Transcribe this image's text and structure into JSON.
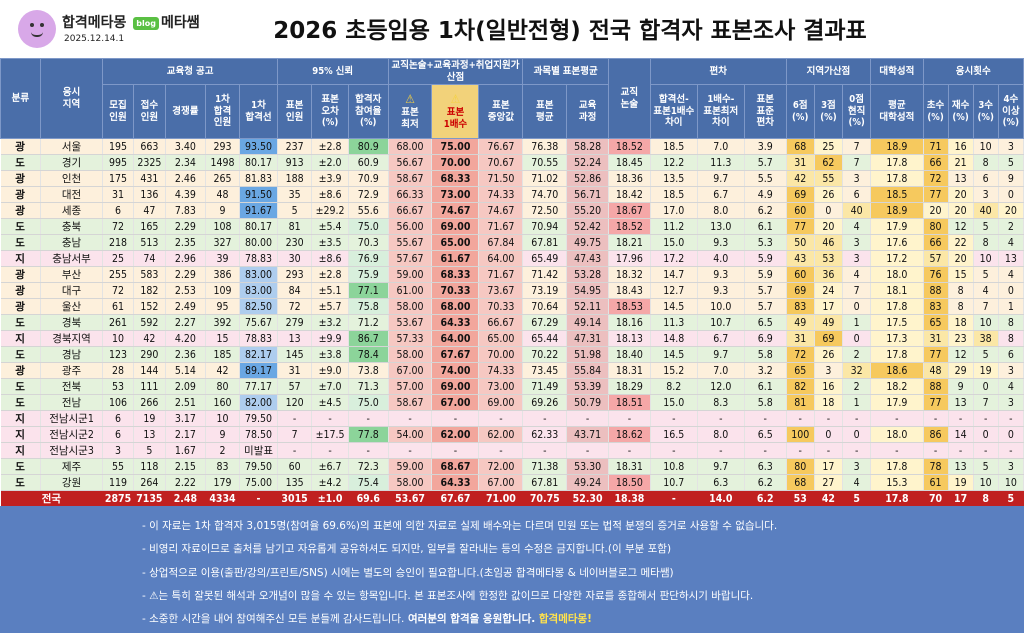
{
  "header": {
    "brand_name": "합격메타몽",
    "brand_badge": "blog",
    "brand_suffix": "메타쌤",
    "date": "2025.12.14.1",
    "title": "2026 초등임용 1차(일반전형) 전국 합격자 표본조사 결과표"
  },
  "colors": {
    "header_blue": "#4a6ea9",
    "total_red": "#c02020",
    "notes_blue": "#5a7fc0",
    "highlight": "#f2d27a"
  },
  "columns": {
    "groups": [
      "교육청 공고",
      "95% 신뢰",
      "교직논술+교육과정+취업지원가산점",
      "과목별 표본평균",
      "편차",
      "지역가산점",
      "대학성적",
      "응시횟수"
    ],
    "sub": [
      "분류",
      "응시\n지역",
      "모집\n인원",
      "접수\n인원",
      "경쟁률",
      "1차\n합격\n인원",
      "1차\n합격선",
      "표본\n인원",
      "표본\n오차\n(%)",
      "합격자\n참여율\n(%)",
      "표본\n최저",
      "표본\n1배수",
      "표본\n중앙값",
      "표본\n평균",
      "교육\n과정",
      "교직\n논술",
      "합격선-\n표본1배수\n차이",
      "1배수-\n표본최저\n차이",
      "표본\n표준\n편차",
      "6점\n(%)",
      "3점\n(%)",
      "0점\n현직\n(%)",
      "평균\n대학성적",
      "초수\n(%)",
      "재수\n(%)",
      "3수\n(%)",
      "4수\n이상\n(%)"
    ]
  },
  "rows": [
    {
      "kind": "광",
      "region": "서울",
      "c": [
        "195",
        "663",
        "3.40",
        "293",
        "93.50",
        "237",
        "±2.8",
        "80.9",
        "68.00",
        "75.00",
        "76.67",
        "76.38",
        "58.28",
        "18.52",
        "18.5",
        "7.0",
        "3.9",
        "68",
        "25",
        "7",
        "18.9",
        "71",
        "16",
        "10",
        "3"
      ]
    },
    {
      "kind": "도",
      "region": "경기",
      "c": [
        "995",
        "2325",
        "2.34",
        "1498",
        "80.17",
        "913",
        "±2.0",
        "60.9",
        "56.67",
        "70.00",
        "70.67",
        "70.55",
        "52.24",
        "18.45",
        "12.2",
        "11.3",
        "5.7",
        "31",
        "62",
        "7",
        "17.8",
        "66",
        "21",
        "8",
        "5"
      ]
    },
    {
      "kind": "광",
      "region": "인천",
      "c": [
        "175",
        "431",
        "2.46",
        "265",
        "81.83",
        "188",
        "±3.9",
        "70.9",
        "58.67",
        "68.33",
        "71.50",
        "71.02",
        "52.86",
        "18.36",
        "13.5",
        "9.7",
        "5.5",
        "42",
        "55",
        "3",
        "17.8",
        "72",
        "13",
        "6",
        "9"
      ]
    },
    {
      "kind": "광",
      "region": "대전",
      "c": [
        "31",
        "136",
        "4.39",
        "48",
        "91.50",
        "35",
        "±8.6",
        "72.9",
        "66.33",
        "73.00",
        "74.33",
        "74.70",
        "56.71",
        "18.42",
        "18.5",
        "6.7",
        "4.9",
        "69",
        "26",
        "6",
        "18.5",
        "77",
        "20",
        "3",
        "0"
      ]
    },
    {
      "kind": "광",
      "region": "세종",
      "c": [
        "6",
        "47",
        "7.83",
        "9",
        "91.67",
        "5",
        "±29.2",
        "55.6",
        "66.67",
        "74.67",
        "74.67",
        "72.50",
        "55.20",
        "18.67",
        "17.0",
        "8.0",
        "6.2",
        "60",
        "0",
        "40",
        "18.9",
        "20",
        "20",
        "40",
        "20"
      ]
    },
    {
      "kind": "도",
      "region": "충북",
      "c": [
        "72",
        "165",
        "2.29",
        "108",
        "80.17",
        "81",
        "±5.4",
        "75.0",
        "56.00",
        "69.00",
        "71.67",
        "70.94",
        "52.42",
        "18.52",
        "11.2",
        "13.0",
        "6.1",
        "77",
        "20",
        "4",
        "17.9",
        "80",
        "12",
        "5",
        "2"
      ]
    },
    {
      "kind": "도",
      "region": "충남",
      "c": [
        "218",
        "513",
        "2.35",
        "327",
        "80.00",
        "230",
        "±3.5",
        "70.3",
        "55.67",
        "65.00",
        "67.84",
        "67.81",
        "49.75",
        "18.21",
        "15.0",
        "9.3",
        "5.3",
        "50",
        "46",
        "3",
        "17.6",
        "66",
        "22",
        "8",
        "4"
      ]
    },
    {
      "kind": "지",
      "region": "충남서부",
      "c": [
        "25",
        "74",
        "2.96",
        "39",
        "78.83",
        "30",
        "±8.6",
        "76.9",
        "57.67",
        "61.67",
        "64.00",
        "65.49",
        "47.43",
        "17.96",
        "17.2",
        "4.0",
        "5.9",
        "43",
        "53",
        "3",
        "17.2",
        "57",
        "20",
        "10",
        "13"
      ]
    },
    {
      "kind": "광",
      "region": "부산",
      "c": [
        "255",
        "583",
        "2.29",
        "386",
        "83.00",
        "293",
        "±2.8",
        "75.9",
        "59.00",
        "68.33",
        "71.67",
        "71.42",
        "53.28",
        "18.32",
        "14.7",
        "9.3",
        "5.9",
        "60",
        "36",
        "4",
        "18.0",
        "76",
        "15",
        "5",
        "4"
      ]
    },
    {
      "kind": "광",
      "region": "대구",
      "c": [
        "72",
        "182",
        "2.53",
        "109",
        "83.00",
        "84",
        "±5.1",
        "77.1",
        "61.00",
        "70.33",
        "73.67",
        "73.19",
        "54.95",
        "18.43",
        "12.7",
        "9.3",
        "5.7",
        "69",
        "24",
        "7",
        "18.1",
        "88",
        "8",
        "4",
        "0"
      ]
    },
    {
      "kind": "광",
      "region": "울산",
      "c": [
        "61",
        "152",
        "2.49",
        "95",
        "82.50",
        "72",
        "±5.7",
        "75.8",
        "58.00",
        "68.00",
        "70.33",
        "70.64",
        "52.11",
        "18.53",
        "14.5",
        "10.0",
        "5.7",
        "83",
        "17",
        "0",
        "17.8",
        "83",
        "8",
        "7",
        "1"
      ]
    },
    {
      "kind": "도",
      "region": "경북",
      "c": [
        "261",
        "592",
        "2.27",
        "392",
        "75.67",
        "279",
        "±3.2",
        "71.2",
        "53.67",
        "64.33",
        "66.67",
        "67.29",
        "49.14",
        "18.16",
        "11.3",
        "10.7",
        "6.5",
        "49",
        "49",
        "1",
        "17.5",
        "65",
        "18",
        "10",
        "8"
      ]
    },
    {
      "kind": "지",
      "region": "경북지역",
      "c": [
        "10",
        "42",
        "4.20",
        "15",
        "78.83",
        "13",
        "±9.9",
        "86.7",
        "57.33",
        "64.00",
        "65.00",
        "65.44",
        "47.31",
        "18.13",
        "14.8",
        "6.7",
        "6.9",
        "31",
        "69",
        "0",
        "17.3",
        "31",
        "23",
        "38",
        "8"
      ]
    },
    {
      "kind": "도",
      "region": "경남",
      "c": [
        "123",
        "290",
        "2.36",
        "185",
        "82.17",
        "145",
        "±3.8",
        "78.4",
        "58.00",
        "67.67",
        "70.00",
        "70.22",
        "51.98",
        "18.40",
        "14.5",
        "9.7",
        "5.8",
        "72",
        "26",
        "2",
        "17.8",
        "77",
        "12",
        "5",
        "6"
      ]
    },
    {
      "kind": "광",
      "region": "광주",
      "c": [
        "28",
        "144",
        "5.14",
        "42",
        "89.17",
        "31",
        "±9.0",
        "73.8",
        "67.00",
        "74.00",
        "74.33",
        "73.45",
        "55.84",
        "18.31",
        "15.2",
        "7.0",
        "3.2",
        "65",
        "3",
        "32",
        "18.6",
        "48",
        "29",
        "19",
        "3"
      ]
    },
    {
      "kind": "도",
      "region": "전북",
      "c": [
        "53",
        "111",
        "2.09",
        "80",
        "77.17",
        "57",
        "±7.0",
        "71.3",
        "57.00",
        "69.00",
        "73.00",
        "71.49",
        "53.39",
        "18.29",
        "8.2",
        "12.0",
        "6.1",
        "82",
        "16",
        "2",
        "18.2",
        "88",
        "9",
        "0",
        "4"
      ]
    },
    {
      "kind": "도",
      "region": "전남",
      "c": [
        "106",
        "266",
        "2.51",
        "160",
        "82.00",
        "120",
        "±4.5",
        "75.0",
        "58.67",
        "67.00",
        "69.00",
        "69.26",
        "50.79",
        "18.51",
        "15.0",
        "8.3",
        "5.8",
        "81",
        "18",
        "1",
        "17.9",
        "77",
        "13",
        "7",
        "3"
      ]
    },
    {
      "kind": "지",
      "region": "전남시군1",
      "c": [
        "6",
        "19",
        "3.17",
        "10",
        "79.50",
        "-",
        "-",
        "-",
        "-",
        "-",
        "-",
        "-",
        "-",
        "-",
        "-",
        "-",
        "-",
        "-",
        "-",
        "-",
        "-",
        "-",
        "-",
        "-",
        "-"
      ]
    },
    {
      "kind": "지",
      "region": "전남시군2",
      "c": [
        "6",
        "13",
        "2.17",
        "9",
        "78.50",
        "7",
        "±17.5",
        "77.8",
        "54.00",
        "62.00",
        "62.00",
        "62.33",
        "43.71",
        "18.62",
        "16.5",
        "8.0",
        "6.5",
        "100",
        "0",
        "0",
        "18.0",
        "86",
        "14",
        "0",
        "0"
      ]
    },
    {
      "kind": "지",
      "region": "전남시군3",
      "c": [
        "3",
        "5",
        "1.67",
        "2",
        "미발표",
        "-",
        "-",
        "-",
        "-",
        "-",
        "-",
        "-",
        "-",
        "-",
        "-",
        "-",
        "-",
        "-",
        "-",
        "-",
        "-",
        "-",
        "-",
        "-",
        "-"
      ]
    },
    {
      "kind": "도",
      "region": "제주",
      "c": [
        "55",
        "118",
        "2.15",
        "83",
        "79.50",
        "60",
        "±6.7",
        "72.3",
        "59.00",
        "68.67",
        "72.00",
        "71.38",
        "53.30",
        "18.31",
        "10.8",
        "9.7",
        "6.3",
        "80",
        "17",
        "3",
        "17.8",
        "78",
        "13",
        "5",
        "3"
      ]
    },
    {
      "kind": "도",
      "region": "강원",
      "c": [
        "119",
        "264",
        "2.22",
        "179",
        "75.00",
        "135",
        "±4.2",
        "75.4",
        "58.00",
        "64.33",
        "67.00",
        "67.81",
        "49.24",
        "18.50",
        "10.7",
        "6.3",
        "6.2",
        "68",
        "27",
        "4",
        "15.3",
        "61",
        "19",
        "10",
        "10"
      ]
    }
  ],
  "total": {
    "label": "전국",
    "c": [
      "2875",
      "7135",
      "2.48",
      "4334",
      "-",
      "3015",
      "±1.0",
      "69.6",
      "53.67",
      "67.67",
      "71.00",
      "70.75",
      "52.30",
      "18.38",
      "-",
      "14.0",
      "6.2",
      "53",
      "42",
      "5",
      "17.8",
      "70",
      "17",
      "8",
      "5"
    ]
  },
  "notes": [
    {
      "text": "- 이 자료는 1차 합격자 3,015명(참여율 69.6%)의 표본에 의한 자료로 실제 배수와는 다르며 민원 또는 법적 분쟁의 증거로 사용할 수 없습니다."
    },
    {
      "text": "- 비영리 자료이므로 출처를 남기고 자유롭게 공유하셔도 되지만, 일부를 잘라내는 등의 수정은 금지합니다.(이 부분 포함)"
    },
    {
      "text": "- 상업적으로 이용(출판/강의/프린트/SNS) 시에는 별도의 승인이 필요합니다.(초임공 합격메타몽 & 네이버블로그 메타쌤)"
    },
    {
      "text": "- ⚠는 특히 잘못된 해석과 오개념이 많을 수 있는 항목입니다. 본 표본조사에 한정한 값이므로 다양한 자료를 종합해서 판단하시기 바랍니다."
    },
    {
      "text": "- 소중한 시간을 내어 참여해주신 모든 분들께 감사드립니다.",
      "bold": " 여러분의 합격을 응원합니다.",
      "highlight": " 합격메타몽!"
    }
  ]
}
